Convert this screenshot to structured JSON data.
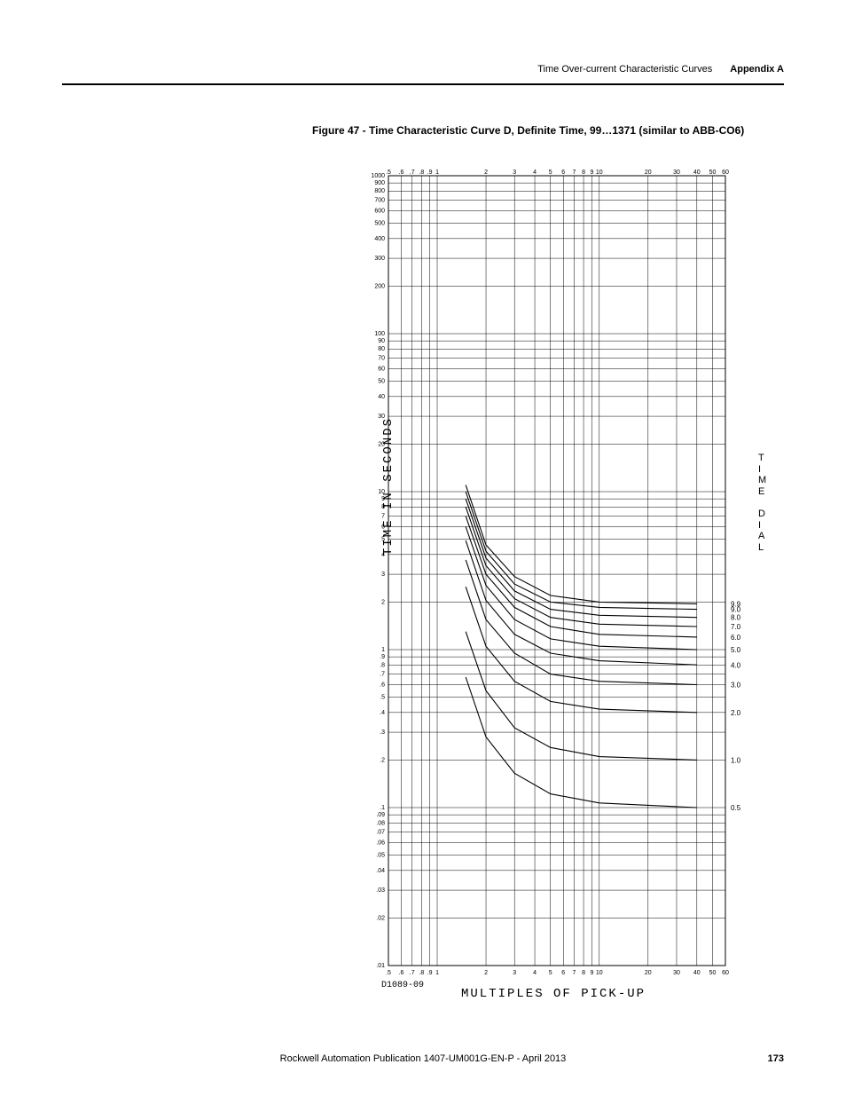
{
  "header": {
    "section": "Time Over-current Characteristic Curves",
    "appendix": "Appendix A"
  },
  "caption": "Figure 47 - Time Characteristic Curve D, Definite Time, 99…1371 (similar to ABB-CO6)",
  "footer": {
    "publication": "Rockwell Automation Publication 1407-UM001G-EN-P - April 2013",
    "page": "173"
  },
  "chart": {
    "type": "loglog-line",
    "y_axis_label": "TIME IN SECONDS",
    "x_axis_label": "MULTIPLES OF PICK-UP",
    "drawing_id": "D1089-09",
    "right_title": [
      "T",
      "I",
      "M",
      "E",
      "",
      "D",
      "I",
      "A",
      "L"
    ],
    "x_range": [
      0.5,
      60
    ],
    "y_range": [
      0.01,
      1000
    ],
    "x_ticks_major": [
      0.5,
      1,
      2,
      3,
      4,
      5,
      6,
      7,
      8,
      9,
      10,
      20,
      30,
      40,
      50,
      60
    ],
    "x_tick_labels": [
      ".5",
      ".6",
      ".7",
      ".8",
      ".9",
      "1",
      "2",
      "3",
      "4",
      "5",
      "6",
      "7",
      "8",
      "9",
      "10",
      "20",
      "30",
      "40",
      "50",
      "60"
    ],
    "x_tick_positions": [
      0.5,
      0.6,
      0.7,
      0.8,
      0.9,
      1,
      2,
      3,
      4,
      5,
      6,
      7,
      8,
      9,
      10,
      20,
      30,
      40,
      50,
      60
    ],
    "y_decades": [
      {
        "base": 0.01,
        "ticks": [
          0.01,
          0.02,
          0.03,
          0.04,
          0.05,
          0.06,
          0.07,
          0.08,
          0.09
        ],
        "labels": [
          ".01",
          ".02",
          ".03",
          ".04",
          ".05",
          ".06",
          ".07",
          ".08",
          ".09"
        ]
      },
      {
        "base": 0.1,
        "ticks": [
          0.1,
          0.2,
          0.3,
          0.4,
          0.5,
          0.6,
          0.7,
          0.8,
          0.9
        ],
        "labels": [
          ".1",
          ".2",
          ".3",
          ".4",
          ".5",
          ".6",
          ".7",
          ".8",
          ".9"
        ]
      },
      {
        "base": 1,
        "ticks": [
          1,
          2,
          3,
          4,
          5,
          6,
          7,
          8,
          9
        ],
        "labels": [
          "1",
          "2",
          "3",
          "4",
          "5",
          "6",
          "7",
          "8",
          "9"
        ]
      },
      {
        "base": 10,
        "ticks": [
          10,
          20,
          30,
          40,
          50,
          60,
          70,
          80,
          90
        ],
        "labels": [
          "10",
          "20",
          "30",
          "40",
          "50",
          "60",
          "70",
          "80",
          "90"
        ]
      },
      {
        "base": 100,
        "ticks": [
          100,
          200,
          300,
          400,
          500,
          600,
          700,
          800,
          900,
          1000
        ],
        "labels": [
          "100",
          "200",
          "300",
          "400",
          "500",
          "600",
          "700",
          "800",
          "900",
          "1000"
        ]
      }
    ],
    "dial_labels": [
      "9.9",
      "9.0",
      "8.0",
      "7.0",
      "6.0",
      "5.0",
      "4.0",
      "3.0",
      "2.0",
      "1.0",
      "0.5"
    ],
    "curves": [
      {
        "dial": "9.9",
        "pts": [
          [
            1.5,
            11
          ],
          [
            2,
            4.6
          ],
          [
            3,
            2.9
          ],
          [
            5,
            2.2
          ],
          [
            10,
            2.0
          ],
          [
            40,
            1.95
          ]
        ]
      },
      {
        "dial": "9.0",
        "pts": [
          [
            1.5,
            10
          ],
          [
            2,
            4.2
          ],
          [
            3,
            2.6
          ],
          [
            5,
            2.0
          ],
          [
            10,
            1.85
          ],
          [
            40,
            1.8
          ]
        ]
      },
      {
        "dial": "8.0",
        "pts": [
          [
            1.5,
            9.0
          ],
          [
            2,
            3.8
          ],
          [
            3,
            2.35
          ],
          [
            5,
            1.8
          ],
          [
            10,
            1.65
          ],
          [
            40,
            1.6
          ]
        ]
      },
      {
        "dial": "7.0",
        "pts": [
          [
            1.5,
            8.0
          ],
          [
            2,
            3.4
          ],
          [
            3,
            2.1
          ],
          [
            5,
            1.6
          ],
          [
            10,
            1.45
          ],
          [
            40,
            1.4
          ]
        ]
      },
      {
        "dial": "6.0",
        "pts": [
          [
            1.5,
            7.0
          ],
          [
            2,
            3.0
          ],
          [
            3,
            1.85
          ],
          [
            5,
            1.4
          ],
          [
            10,
            1.25
          ],
          [
            40,
            1.2
          ]
        ]
      },
      {
        "dial": "5.0",
        "pts": [
          [
            1.5,
            6.0
          ],
          [
            2,
            2.55
          ],
          [
            3,
            1.55
          ],
          [
            5,
            1.17
          ],
          [
            10,
            1.05
          ],
          [
            40,
            1.0
          ]
        ]
      },
      {
        "dial": "4.0",
        "pts": [
          [
            1.5,
            4.9
          ],
          [
            2,
            2.05
          ],
          [
            3,
            1.25
          ],
          [
            5,
            0.95
          ],
          [
            10,
            0.85
          ],
          [
            40,
            0.8
          ]
        ]
      },
      {
        "dial": "3.0",
        "pts": [
          [
            1.5,
            3.7
          ],
          [
            2,
            1.55
          ],
          [
            3,
            0.95
          ],
          [
            5,
            0.7
          ],
          [
            10,
            0.63
          ],
          [
            40,
            0.6
          ]
        ]
      },
      {
        "dial": "2.0",
        "pts": [
          [
            1.5,
            2.5
          ],
          [
            2,
            1.05
          ],
          [
            3,
            0.63
          ],
          [
            5,
            0.47
          ],
          [
            10,
            0.42
          ],
          [
            40,
            0.4
          ]
        ]
      },
      {
        "dial": "1.0",
        "pts": [
          [
            1.5,
            1.3
          ],
          [
            2,
            0.55
          ],
          [
            3,
            0.32
          ],
          [
            5,
            0.24
          ],
          [
            10,
            0.21
          ],
          [
            40,
            0.2
          ]
        ]
      },
      {
        "dial": "0.5",
        "pts": [
          [
            1.5,
            0.67
          ],
          [
            2,
            0.28
          ],
          [
            3,
            0.165
          ],
          [
            5,
            0.122
          ],
          [
            10,
            0.107
          ],
          [
            40,
            0.1
          ]
        ]
      }
    ],
    "colors": {
      "background": "#ffffff",
      "grid": "#000000",
      "curve": "#000000",
      "text": "#000000"
    },
    "line_width_grid": 0.5,
    "line_width_curve": 1.1,
    "tick_fontsize": 7,
    "label_fontsize": 14
  }
}
